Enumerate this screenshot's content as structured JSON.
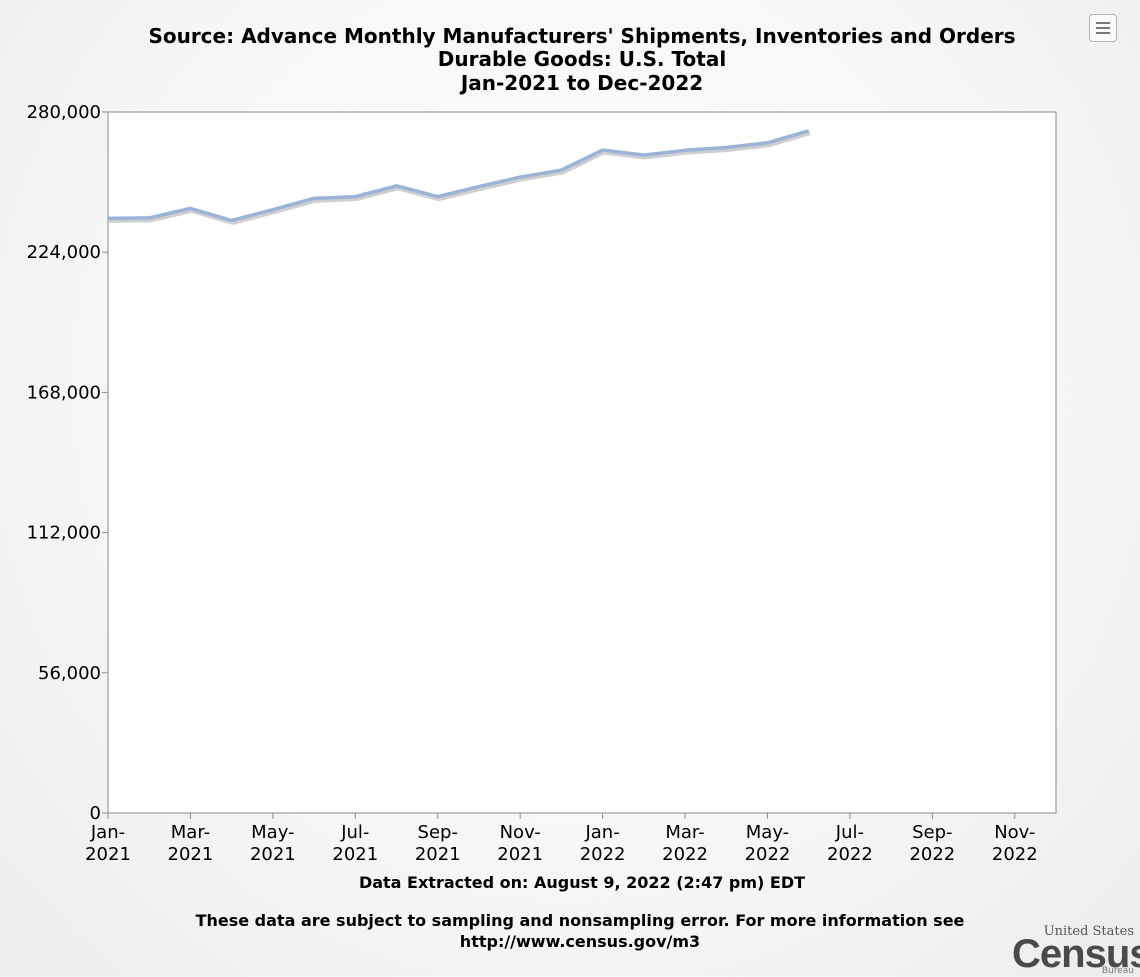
{
  "chart_data": {
    "type": "line",
    "title_lines": [
      "Source: Advance Monthly Manufacturers' Shipments, Inventories and Orders",
      "Durable Goods: U.S. Total",
      "Jan-2021 to Dec-2022"
    ],
    "xlabel": "",
    "ylabel": "",
    "ylim": [
      0,
      280000
    ],
    "y_ticks": [
      0,
      56000,
      112000,
      168000,
      224000,
      280000
    ],
    "y_tick_labels": [
      "0",
      "56,000",
      "112,000",
      "168,000",
      "224,000",
      "280,000"
    ],
    "x_categories": [
      "Jan-2021",
      "Feb-2021",
      "Mar-2021",
      "Apr-2021",
      "May-2021",
      "Jun-2021",
      "Jul-2021",
      "Aug-2021",
      "Sep-2021",
      "Oct-2021",
      "Nov-2021",
      "Dec-2021",
      "Jan-2022",
      "Feb-2022",
      "Mar-2022",
      "Apr-2022",
      "May-2022",
      "Jun-2022",
      "Jul-2022",
      "Aug-2022",
      "Sep-2022",
      "Oct-2022",
      "Nov-2022",
      "Dec-2022"
    ],
    "x_tick_labels": [
      {
        "index": 0,
        "line1": "Jan-",
        "line2": "2021"
      },
      {
        "index": 2,
        "line1": "Mar-",
        "line2": "2021"
      },
      {
        "index": 4,
        "line1": "May-",
        "line2": "2021"
      },
      {
        "index": 6,
        "line1": "Jul-",
        "line2": "2021"
      },
      {
        "index": 8,
        "line1": "Sep-",
        "line2": "2021"
      },
      {
        "index": 10,
        "line1": "Nov-",
        "line2": "2021"
      },
      {
        "index": 12,
        "line1": "Jan-",
        "line2": "2022"
      },
      {
        "index": 14,
        "line1": "Mar-",
        "line2": "2022"
      },
      {
        "index": 16,
        "line1": "May-",
        "line2": "2022"
      },
      {
        "index": 18,
        "line1": "Jul-",
        "line2": "2022"
      },
      {
        "index": 20,
        "line1": "Sep-",
        "line2": "2022"
      },
      {
        "index": 22,
        "line1": "Nov-",
        "line2": "2022"
      }
    ],
    "series": [
      {
        "name": "Durable Goods: U.S. Total",
        "color": "#9bb3d6",
        "values": [
          237500,
          237700,
          241500,
          236700,
          241000,
          245500,
          246200,
          250500,
          246200,
          250200,
          254000,
          256800,
          264800,
          262800,
          264700,
          265800,
          267700,
          272500
        ]
      }
    ],
    "grid": false,
    "legend": "none"
  },
  "footer": {
    "extracted": "Data Extracted on: August 9, 2022 (2:47 pm) EDT",
    "disclaimer_line1": "These data are subject to sampling and nonsampling error. For more information see",
    "disclaimer_line2": "http://www.census.gov/m3"
  },
  "logo": {
    "line1": "United States",
    "line2": "Census",
    "line3": "Bureau"
  },
  "menu": {
    "icon": "hamburger-menu-icon"
  }
}
